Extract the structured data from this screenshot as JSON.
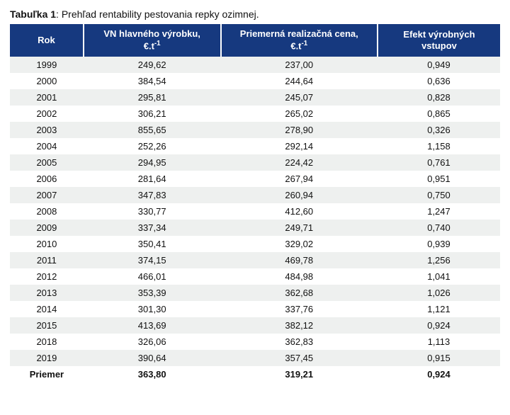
{
  "caption": {
    "label": "Tabuľka 1",
    "text": ": Prehľad rentability pestovania repky ozimnej."
  },
  "table": {
    "columns": [
      "Rok",
      "VN hlavného výrobku, €.t⁻¹",
      "Priemerná realizačná cena, €.t⁻¹",
      "Efekt výrobných vstupov"
    ],
    "header_bg": "#16397f",
    "header_fg": "#ffffff",
    "row_even_bg": "#eef0ef",
    "row_odd_bg": "#ffffff",
    "rows": [
      [
        "1999",
        "249,62",
        "237,00",
        "0,949"
      ],
      [
        "2000",
        "384,54",
        "244,64",
        "0,636"
      ],
      [
        "2001",
        "295,81",
        "245,07",
        "0,828"
      ],
      [
        "2002",
        "306,21",
        "265,02",
        "0,865"
      ],
      [
        "2003",
        "855,65",
        "278,90",
        "0,326"
      ],
      [
        "2004",
        "252,26",
        "292,14",
        "1,158"
      ],
      [
        "2005",
        "294,95",
        "224,42",
        "0,761"
      ],
      [
        "2006",
        "281,64",
        "267,94",
        "0,951"
      ],
      [
        "2007",
        "347,83",
        "260,94",
        "0,750"
      ],
      [
        "2008",
        "330,77",
        "412,60",
        "1,247"
      ],
      [
        "2009",
        "337,34",
        "249,71",
        "0,740"
      ],
      [
        "2010",
        "350,41",
        "329,02",
        "0,939"
      ],
      [
        "2011",
        "374,15",
        "469,78",
        "1,256"
      ],
      [
        "2012",
        "466,01",
        "484,98",
        "1,041"
      ],
      [
        "2013",
        "353,39",
        "362,68",
        "1,026"
      ],
      [
        "2014",
        "301,30",
        "337,76",
        "1,121"
      ],
      [
        "2015",
        "413,69",
        "382,12",
        "0,924"
      ],
      [
        "2018",
        "326,06",
        "362,83",
        "1,113"
      ],
      [
        "2019",
        "390,64",
        "357,45",
        "0,915"
      ]
    ],
    "summary": [
      "Priemer",
      "363,80",
      "319,21",
      "0,924"
    ]
  }
}
